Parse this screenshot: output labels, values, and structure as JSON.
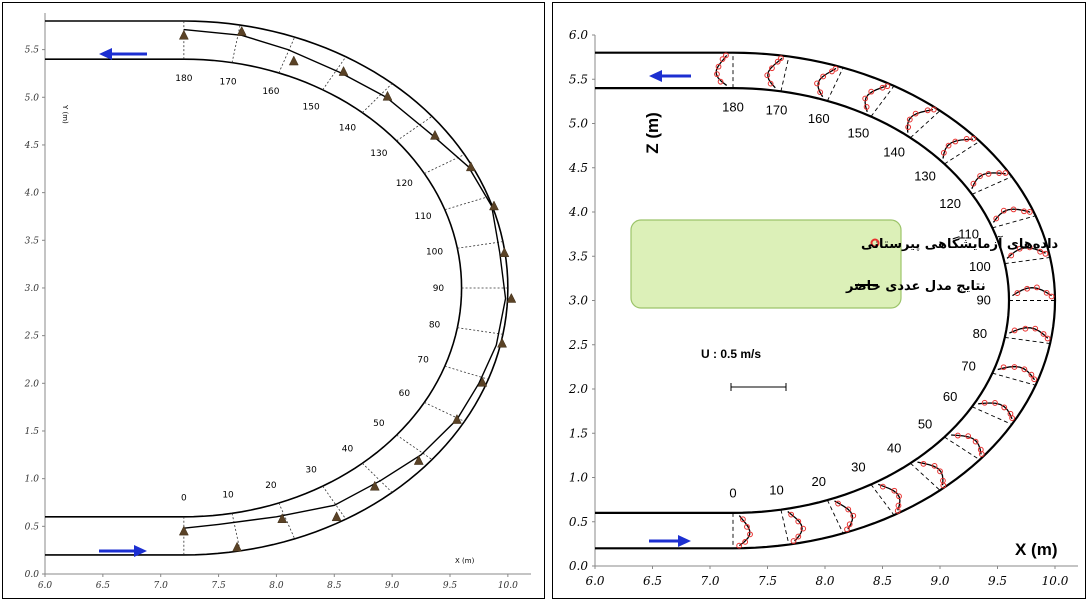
{
  "chart_data": [
    {
      "type": "scatter",
      "panel": "left",
      "xlabel": "X (m)",
      "ylabel": "Y (m)",
      "xlim": [
        6.0,
        10.2
      ],
      "ylim": [
        0.0,
        5.8
      ],
      "x_ticks": [
        "6.0",
        "6.5",
        "7.0",
        "7.5",
        "8.0",
        "8.5",
        "9.0",
        "9.5",
        "10.0"
      ],
      "y_ticks": [
        "0.0",
        "0.5",
        "1.0",
        "1.5",
        "2.0",
        "2.5",
        "3.0",
        "3.5",
        "4.0",
        "4.5",
        "5.0",
        "5.5"
      ],
      "section_angles": [
        "0",
        "10",
        "20",
        "30",
        "40",
        "50",
        "60",
        "70",
        "80",
        "90",
        "100",
        "110",
        "120",
        "130",
        "140",
        "150",
        "160",
        "170",
        "180"
      ],
      "max_velocity_points": [
        {
          "x": 7.2,
          "y": 0.45
        },
        {
          "x": 7.66,
          "y": 0.28
        },
        {
          "x": 8.05,
          "y": 0.58
        },
        {
          "x": 8.52,
          "y": 0.6
        },
        {
          "x": 8.85,
          "y": 0.92
        },
        {
          "x": 9.23,
          "y": 1.19
        },
        {
          "x": 9.56,
          "y": 1.62
        },
        {
          "x": 9.78,
          "y": 2.01
        },
        {
          "x": 9.95,
          "y": 2.42
        },
        {
          "x": 10.03,
          "y": 2.89
        },
        {
          "x": 9.97,
          "y": 3.37
        },
        {
          "x": 9.88,
          "y": 3.86
        },
        {
          "x": 9.68,
          "y": 4.27
        },
        {
          "x": 9.37,
          "y": 4.6
        },
        {
          "x": 8.96,
          "y": 5.01
        },
        {
          "x": 8.58,
          "y": 5.27
        },
        {
          "x": 8.15,
          "y": 5.38
        },
        {
          "x": 7.7,
          "y": 5.69
        },
        {
          "x": 7.2,
          "y": 5.65
        }
      ],
      "inner_line": [
        [
          7.2,
          0.48
        ],
        [
          7.5,
          0.52
        ],
        [
          8.0,
          0.6
        ],
        [
          8.5,
          0.72
        ],
        [
          8.9,
          0.98
        ],
        [
          9.25,
          1.25
        ],
        [
          9.56,
          1.62
        ],
        [
          9.75,
          2.0
        ],
        [
          9.9,
          2.4
        ],
        [
          9.98,
          2.89
        ],
        [
          9.93,
          3.37
        ],
        [
          9.86,
          3.86
        ],
        [
          9.66,
          4.27
        ],
        [
          9.35,
          4.6
        ],
        [
          8.95,
          5.0
        ],
        [
          8.55,
          5.26
        ],
        [
          8.1,
          5.5
        ],
        [
          7.7,
          5.65
        ],
        [
          7.2,
          5.71
        ]
      ],
      "flow_direction": [
        "right (bottom channel)",
        "left (top channel)"
      ]
    },
    {
      "type": "scatter",
      "panel": "right",
      "xlabel": "X (m)",
      "ylabel": "Z (m)",
      "xlim": [
        6.0,
        10.2
      ],
      "ylim": [
        0.0,
        6.0
      ],
      "x_ticks": [
        "6.0",
        "6.5",
        "7.0",
        "7.5",
        "8.0",
        "8.5",
        "9.0",
        "9.5",
        "10.0"
      ],
      "y_ticks": [
        "0.0",
        "0.5",
        "1.0",
        "1.5",
        "2.0",
        "2.5",
        "3.0",
        "3.5",
        "4.0",
        "4.5",
        "5.0",
        "5.5",
        "6.0"
      ],
      "section_angles": [
        "0",
        "10",
        "20",
        "30",
        "40",
        "50",
        "60",
        "70",
        "80",
        "90",
        "100",
        "110",
        "120",
        "130",
        "140",
        "150",
        "160",
        "170",
        "180"
      ],
      "velocity_scale": "U : 0.5 m/s",
      "series": [
        {
          "name": "داده‌های آزمایشگاهی پیرستانی",
          "marker": "circle",
          "color": "#e8312f"
        },
        {
          "name": "نتایج مدل عددی حاضر",
          "marker": "line",
          "color": "#000000"
        }
      ],
      "flow_direction": [
        "right (bottom channel)",
        "left (top channel)"
      ]
    }
  ],
  "legend": {
    "item1": "داده‌های آزمایشگاهی پیرستانی",
    "item2": "نتایج مدل عددی حاضر"
  },
  "scale_label": "U : 0.5 m/s",
  "colors": {
    "arrow": "#1c2fd1",
    "experimental": "#e8312f",
    "triangle": "#5a4226",
    "legend_bg": "#dcf0b8",
    "legend_border": "#9cc46a"
  }
}
